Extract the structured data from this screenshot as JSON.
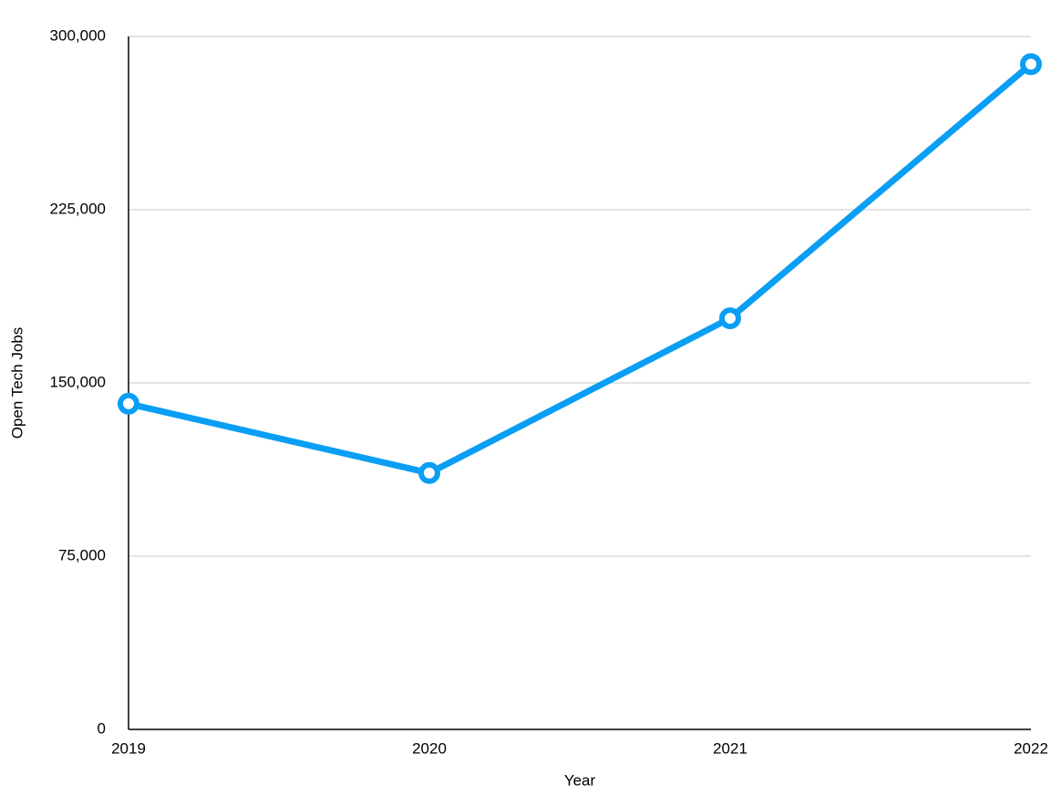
{
  "chart_data": {
    "type": "line",
    "x_label": "Year",
    "y_label": "Open Tech Jobs",
    "categories": [
      "2019",
      "2020",
      "2021",
      "2022"
    ],
    "series": [
      {
        "name": "Open Tech Jobs",
        "color": "#0a9ef5",
        "values": [
          141000,
          111000,
          178000,
          288000
        ]
      }
    ],
    "ylim": [
      0,
      300000
    ],
    "yticks": [
      0,
      {
        "value": 75000,
        "label": "75,000"
      },
      {
        "value": 150000,
        "label": "150,000"
      },
      {
        "value": 225000,
        "label": "225,000"
      },
      {
        "value": 300000,
        "label": "300,000"
      }
    ],
    "grid": true
  }
}
